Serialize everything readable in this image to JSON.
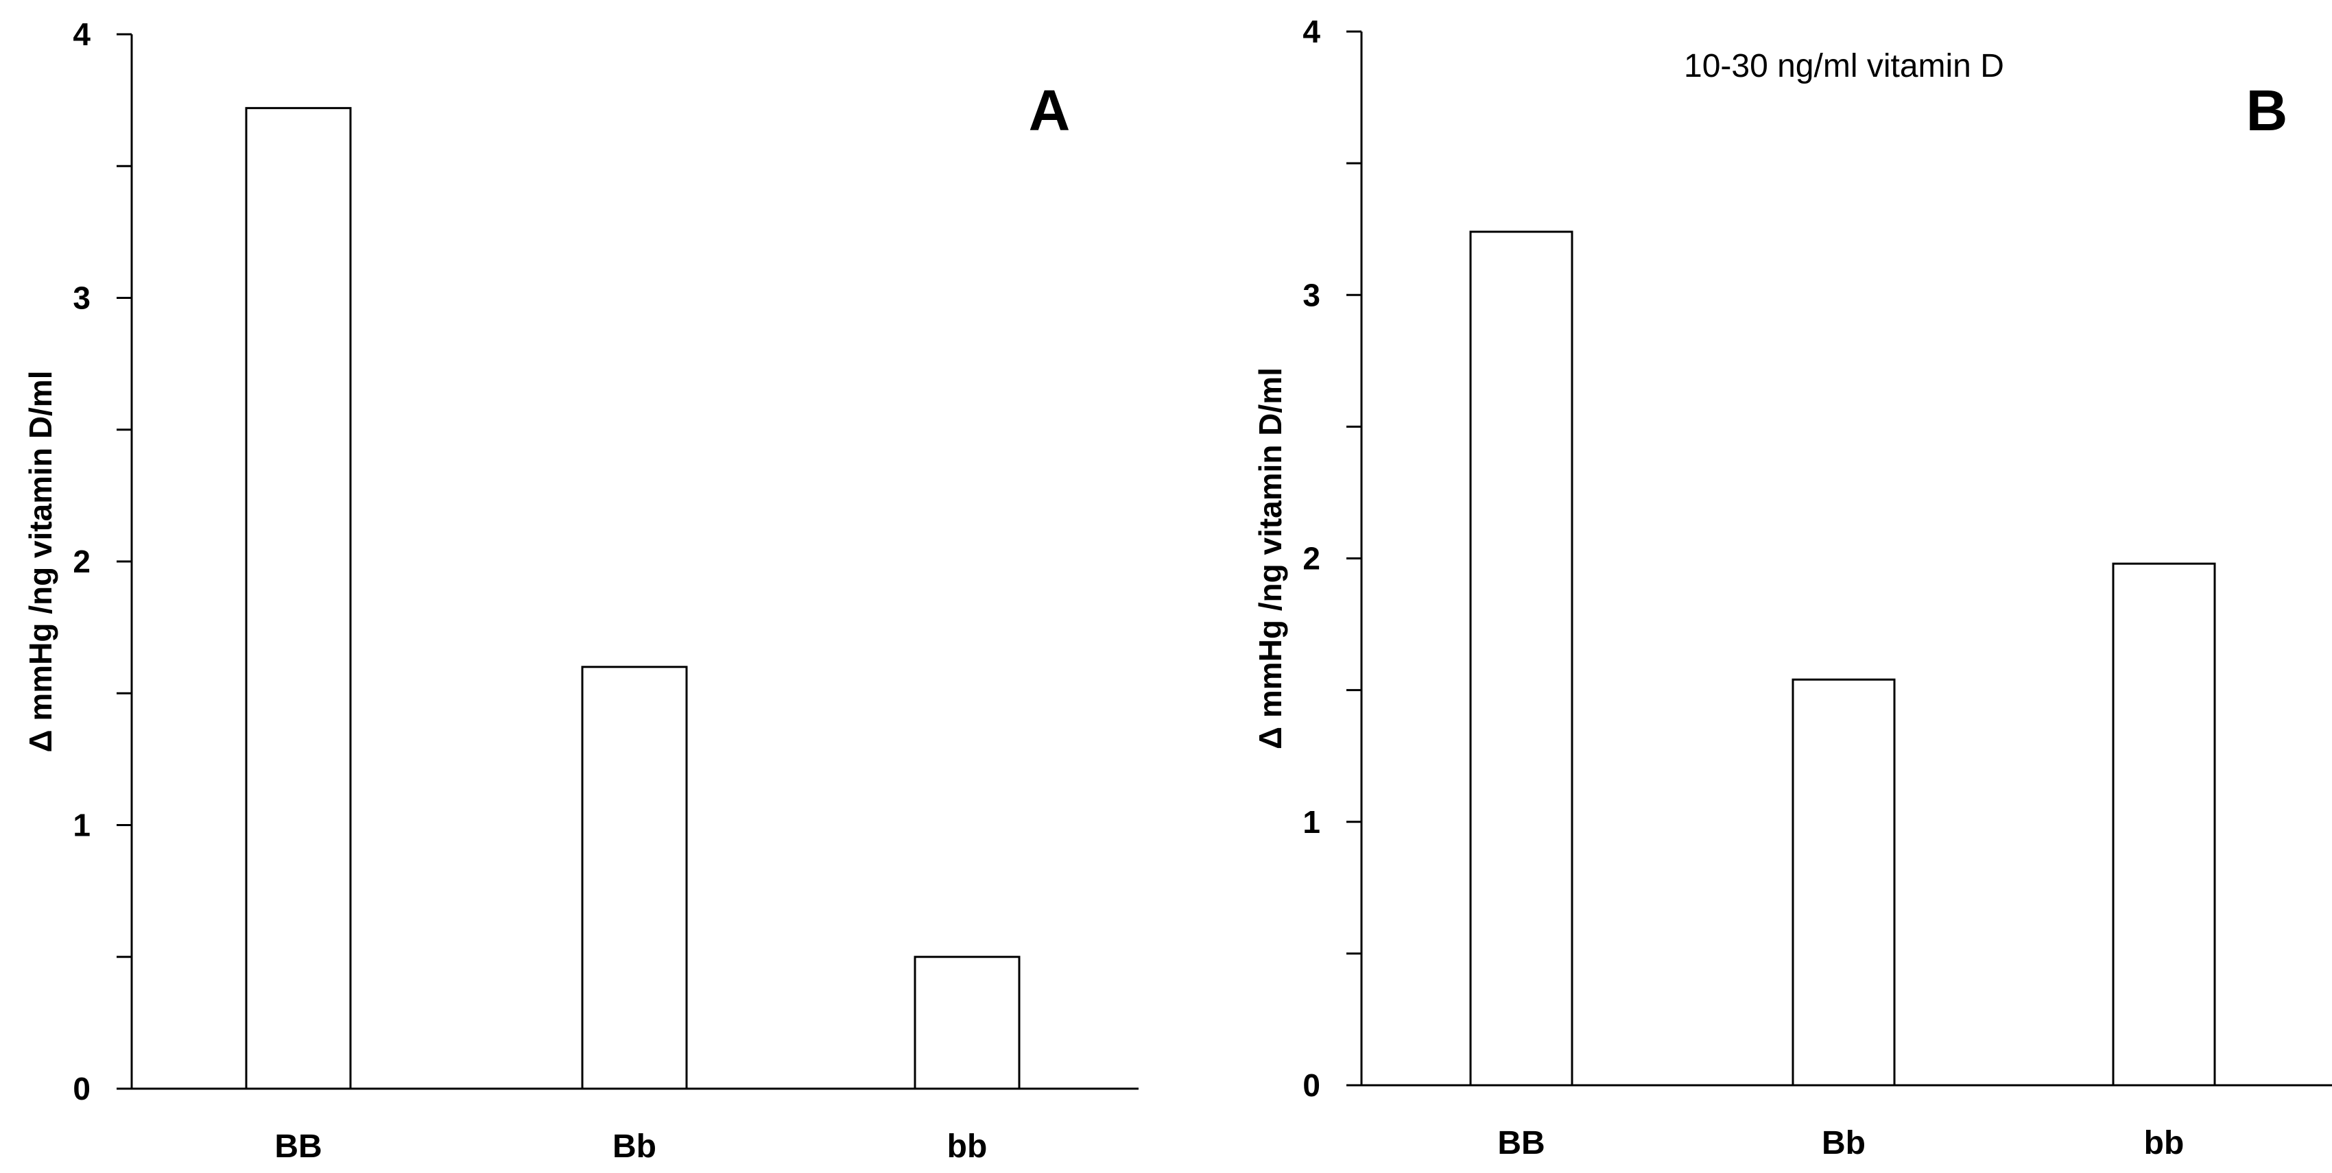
{
  "chart_data": [
    {
      "type": "bar",
      "panel_label": "A",
      "categories": [
        "BB",
        "Bb",
        "bb"
      ],
      "values": [
        3.72,
        1.6,
        0.5
      ],
      "ylabel": "Δ mmHg /ng vitamin D/ml",
      "xlabel": "",
      "ylim": [
        0,
        4
      ],
      "yticks": [
        "0",
        "1",
        "2",
        "3",
        "4"
      ],
      "annotation": "",
      "grid": false
    },
    {
      "type": "bar",
      "panel_label": "B",
      "categories": [
        "BB",
        "Bb",
        "bb"
      ],
      "values": [
        3.24,
        1.54,
        1.98
      ],
      "ylabel": "Δ mmHg /ng vitamin D/ml",
      "xlabel": "",
      "ylim": [
        0,
        4
      ],
      "yticks": [
        "0",
        "1",
        "2",
        "3",
        "4"
      ],
      "annotation": "10-30 ng/ml vitamin D",
      "grid": false
    }
  ]
}
